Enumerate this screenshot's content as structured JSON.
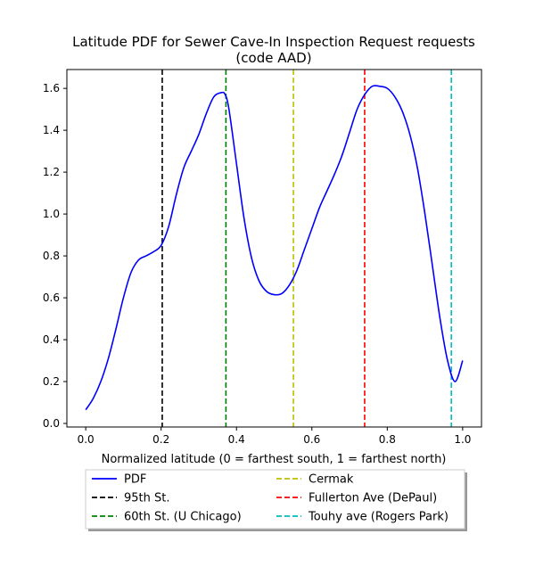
{
  "chart_data": {
    "type": "line",
    "title_line1": "Latitude PDF for Sewer Cave-In Inspection Request  requests",
    "title_line2": "(code AAD)",
    "xlabel": "Normalized latitude (0 = farthest south, 1 = farthest north)",
    "ylabel": "",
    "xlim": [
      -0.05,
      1.05
    ],
    "ylim": [
      -0.017,
      1.69
    ],
    "x_ticks": [
      0.0,
      0.2,
      0.4,
      0.6,
      0.8,
      1.0
    ],
    "x_tick_labels": [
      "0.0",
      "0.2",
      "0.4",
      "0.6",
      "0.8",
      "1.0"
    ],
    "y_ticks": [
      0.0,
      0.2,
      0.4,
      0.6,
      0.8,
      1.0,
      1.2,
      1.4,
      1.6
    ],
    "y_tick_labels": [
      "0.0",
      "0.2",
      "0.4",
      "0.6",
      "0.8",
      "1.0",
      "1.2",
      "1.4",
      "1.6"
    ],
    "grid": false,
    "legend_position": "below",
    "series": [
      {
        "name": "PDF",
        "color": "#0000ff",
        "x": [
          0.0,
          0.02,
          0.04,
          0.06,
          0.08,
          0.1,
          0.12,
          0.14,
          0.16,
          0.18,
          0.2,
          0.22,
          0.24,
          0.26,
          0.28,
          0.3,
          0.32,
          0.34,
          0.36,
          0.37,
          0.38,
          0.4,
          0.42,
          0.44,
          0.46,
          0.48,
          0.5,
          0.52,
          0.54,
          0.56,
          0.58,
          0.6,
          0.62,
          0.64,
          0.66,
          0.68,
          0.7,
          0.72,
          0.74,
          0.76,
          0.78,
          0.8,
          0.82,
          0.84,
          0.86,
          0.88,
          0.9,
          0.92,
          0.94,
          0.96,
          0.98,
          1.0
        ],
        "y": [
          0.065,
          0.12,
          0.2,
          0.31,
          0.45,
          0.6,
          0.72,
          0.78,
          0.8,
          0.82,
          0.85,
          0.94,
          1.09,
          1.22,
          1.3,
          1.38,
          1.48,
          1.56,
          1.58,
          1.57,
          1.5,
          1.24,
          0.98,
          0.79,
          0.68,
          0.63,
          0.615,
          0.62,
          0.66,
          0.73,
          0.83,
          0.93,
          1.03,
          1.11,
          1.19,
          1.28,
          1.39,
          1.5,
          1.57,
          1.61,
          1.61,
          1.6,
          1.56,
          1.49,
          1.38,
          1.22,
          1.0,
          0.75,
          0.5,
          0.3,
          0.2,
          0.3
        ]
      },
      {
        "name": "95th St.",
        "color": "#000000",
        "x_line": 0.203
      },
      {
        "name": "60th St. (U Chicago)",
        "color": "#008000",
        "x_line": 0.372
      },
      {
        "name": "Cermak",
        "color": "#bfbf00",
        "x_line": 0.551
      },
      {
        "name": "Fullerton Ave (DePaul)",
        "color": "#ff0000",
        "x_line": 0.74
      },
      {
        "name": "Touhy ave (Rogers Park)",
        "color": "#00bfbf",
        "x_line": 0.97
      }
    ]
  }
}
